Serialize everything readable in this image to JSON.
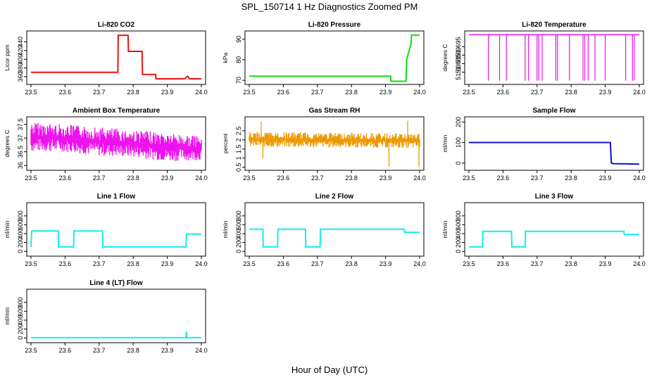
{
  "figure": {
    "title": "SPL_150714  1 Hz Diagnostics Zoomed PM",
    "xlabel": "Hour of Day (UTC)"
  },
  "chart_data": [
    {
      "type": "line",
      "title": "Li-820 CO2",
      "ylabel": "Licor ppm",
      "color": "#ee1111",
      "xlim": [
        23.5,
        24.0
      ],
      "xticks": [
        "23.5",
        "23.6",
        "23.7",
        "23.8",
        "23.9",
        "24.0"
      ],
      "ylim": [
        347,
        460
      ],
      "yticks": [
        360,
        380,
        400,
        420,
        440
      ],
      "series": [
        {
          "name": "CO2",
          "x": [
            23.5,
            23.755,
            23.756,
            23.785,
            23.786,
            23.826,
            23.827,
            23.866,
            23.867,
            23.95,
            23.96,
            23.965,
            23.99,
            24.0
          ],
          "y": [
            370,
            370,
            455,
            455,
            418,
            418,
            365,
            365,
            355,
            355,
            361,
            355,
            355,
            355
          ]
        }
      ]
    },
    {
      "type": "line",
      "title": "Li-820 Pressure",
      "ylabel": "kPa",
      "color": "#11dd11",
      "xlim": [
        23.5,
        24.0
      ],
      "xticks": [
        "23.5",
        "23.6",
        "23.7",
        "23.8",
        "23.9",
        "24.0"
      ],
      "ylim": [
        69,
        93
      ],
      "yticks": [
        70,
        80,
        90
      ],
      "series": [
        {
          "name": "Pressure",
          "x": [
            23.5,
            23.915,
            23.916,
            23.96,
            23.962,
            23.975,
            23.976,
            24.0
          ],
          "y": [
            72,
            72,
            69.5,
            69.5,
            80,
            88,
            92,
            92
          ]
        }
      ]
    },
    {
      "type": "line",
      "title": "Li-820 Temperature",
      "ylabel": "degrees C",
      "color": "#ee11ee",
      "xlim": [
        23.5,
        24.0
      ],
      "xticks": [
        "23.5",
        "23.6",
        "23.7",
        "23.8",
        "23.9",
        "24.0"
      ],
      "ylim": [
        51.674,
        51.703
      ],
      "yticks": [
        51.68,
        51.685,
        51.69,
        51.695
      ],
      "baseline": 51.702,
      "dips": [
        23.557,
        23.59,
        23.61,
        23.665,
        23.675,
        23.7,
        23.705,
        23.715,
        23.755,
        23.76,
        23.795,
        23.835,
        23.84,
        23.85,
        23.87,
        23.9,
        23.96,
        23.98,
        23.985
      ],
      "dip_value": 51.675
    },
    {
      "type": "line",
      "title": "Ambient Box Temperature",
      "ylabel": "degrees C",
      "color": "#ee11ee",
      "xlim": [
        23.5,
        24.0
      ],
      "xticks": [
        "23.5",
        "23.6",
        "23.7",
        "23.8",
        "23.9",
        "24.0"
      ],
      "ylim": [
        35.9,
        37.7
      ],
      "yticks": [
        36.0,
        36.5,
        37.0,
        37.5
      ],
      "band_x": [
        23.5,
        23.6,
        23.7,
        23.8,
        23.9,
        24.0
      ],
      "band_low": [
        36.5,
        36.5,
        36.35,
        36.3,
        36.15,
        36.2
      ],
      "band_high": [
        37.6,
        37.5,
        37.4,
        37.3,
        37.2,
        37.05
      ]
    },
    {
      "type": "scatter",
      "title": "Gas Stream RH",
      "ylabel": "percent",
      "color": "#ee9900",
      "xlim": [
        23.5,
        24.0
      ],
      "xticks": [
        "23.5",
        "23.6",
        "23.7",
        "23.8",
        "23.9",
        "24.0"
      ],
      "ylim": [
        0.45,
        3.15
      ],
      "yticks": [
        0.5,
        1.0,
        1.5,
        2.0,
        2.5
      ],
      "band_x": [
        23.5,
        24.0
      ],
      "band_low": [
        1.6,
        1.55
      ],
      "band_high": [
        2.45,
        2.35
      ],
      "spikes": [
        {
          "x": 23.535,
          "y": 3.0
        },
        {
          "x": 23.54,
          "y": 1.0
        },
        {
          "x": 23.965,
          "y": 3.05
        },
        {
          "x": 23.91,
          "y": 0.55
        },
        {
          "x": 23.998,
          "y": 0.5
        }
      ]
    },
    {
      "type": "line",
      "title": "Sample Flow",
      "ylabel": "ml/min",
      "color": "#1111cc",
      "xlim": [
        23.5,
        24.0
      ],
      "xticks": [
        "23.5",
        "23.6",
        "23.7",
        "23.8",
        "23.9",
        "24.0"
      ],
      "ylim": [
        -25,
        215
      ],
      "yticks": [
        0,
        100,
        200
      ],
      "series": [
        {
          "name": "Sample Flow",
          "x": [
            23.5,
            23.915,
            23.918,
            23.925,
            24.0
          ],
          "y": [
            100,
            100,
            0,
            -3,
            -5
          ]
        }
      ]
    },
    {
      "type": "line",
      "title": "Line 1 Flow",
      "ylabel": "ml/min",
      "color": "#11eeee",
      "xlim": [
        23.5,
        24.0
      ],
      "xticks": [
        "23.5",
        "23.6",
        "23.7",
        "23.8",
        "23.9",
        "24.0"
      ],
      "ylim": [
        -60,
        1050
      ],
      "yticks": [
        0,
        200,
        400,
        600,
        800
      ],
      "series": [
        {
          "name": "Line 1",
          "x": [
            23.5,
            23.502,
            23.58,
            23.581,
            23.625,
            23.626,
            23.71,
            23.711,
            23.955,
            23.956,
            24.0
          ],
          "y": [
            100,
            460,
            460,
            100,
            100,
            460,
            460,
            100,
            100,
            390,
            390
          ]
        }
      ]
    },
    {
      "type": "line",
      "title": "Line 2 Flow",
      "ylabel": "ml/min",
      "color": "#11eeee",
      "xlim": [
        23.5,
        24.0
      ],
      "xticks": [
        "23.5",
        "23.6",
        "23.7",
        "23.8",
        "23.9",
        "24.0"
      ],
      "ylim": [
        -60,
        1050
      ],
      "yticks": [
        0,
        200,
        400,
        600,
        800
      ],
      "series": [
        {
          "name": "Line 2",
          "x": [
            23.5,
            23.54,
            23.541,
            23.583,
            23.584,
            23.665,
            23.666,
            23.708,
            23.709,
            23.955,
            23.956,
            24.0
          ],
          "y": [
            500,
            500,
            100,
            100,
            500,
            500,
            100,
            100,
            500,
            500,
            430,
            430
          ]
        }
      ]
    },
    {
      "type": "line",
      "title": "Line 3 Flow",
      "ylabel": "ml/min",
      "color": "#11eeee",
      "xlim": [
        23.5,
        24.0
      ],
      "xticks": [
        "23.5",
        "23.6",
        "23.7",
        "23.8",
        "23.9",
        "24.0"
      ],
      "ylim": [
        -60,
        1050
      ],
      "yticks": [
        0,
        200,
        400,
        600,
        800
      ],
      "series": [
        {
          "name": "Line 3",
          "x": [
            23.5,
            23.502,
            23.54,
            23.541,
            23.625,
            23.626,
            23.665,
            23.666,
            23.955,
            23.956,
            24.0
          ],
          "y": [
            100,
            100,
            100,
            450,
            450,
            100,
            100,
            450,
            450,
            380,
            380
          ]
        }
      ]
    },
    {
      "type": "line",
      "title": "Line 4 (LT) Flow",
      "ylabel": "ml/min",
      "color": "#11eeee",
      "xlim": [
        23.5,
        24.0
      ],
      "xticks": [
        "23.5",
        "23.6",
        "23.7",
        "23.8",
        "23.9",
        "24.0"
      ],
      "ylim": [
        -60,
        1050
      ],
      "yticks": [
        0,
        200,
        400,
        600,
        800
      ],
      "series": [
        {
          "name": "Line 4",
          "x": [
            23.5,
            23.955,
            23.9555,
            23.956,
            23.957,
            24.0
          ],
          "y": [
            5,
            5,
            130,
            130,
            5,
            5
          ]
        }
      ]
    }
  ]
}
